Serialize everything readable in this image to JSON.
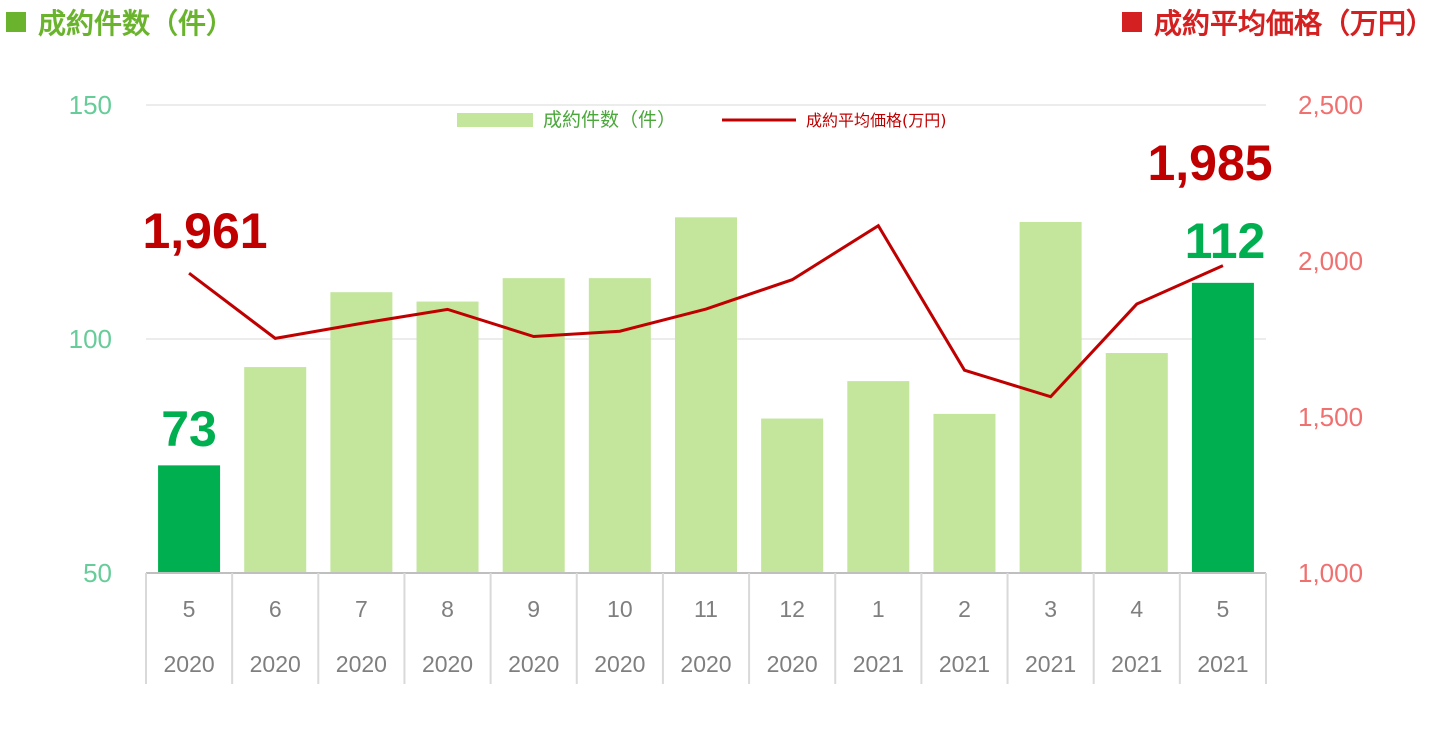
{
  "header": {
    "left_label": "成約件数（件）",
    "right_label": "成約平均価格（万円）",
    "left_color": "#6ab42d",
    "right_color": "#d42020"
  },
  "chart_data": {
    "type": "bar",
    "categories": [
      {
        "month": "5",
        "year": "2020"
      },
      {
        "month": "6",
        "year": "2020"
      },
      {
        "month": "7",
        "year": "2020"
      },
      {
        "month": "8",
        "year": "2020"
      },
      {
        "month": "9",
        "year": "2020"
      },
      {
        "month": "10",
        "year": "2020"
      },
      {
        "month": "11",
        "year": "2020"
      },
      {
        "month": "12",
        "year": "2020"
      },
      {
        "month": "1",
        "year": "2021"
      },
      {
        "month": "2",
        "year": "2021"
      },
      {
        "month": "3",
        "year": "2021"
      },
      {
        "month": "4",
        "year": "2021"
      },
      {
        "month": "5",
        "year": "2021"
      }
    ],
    "series": [
      {
        "name": "成約件数（件）",
        "type": "bar",
        "axis": "left",
        "values": [
          73,
          94,
          110,
          108,
          113,
          113,
          126,
          83,
          91,
          84,
          125,
          97,
          112
        ],
        "color": "#c3e59c",
        "highlight_color": "#00b050",
        "highlight_indices": [
          0,
          12
        ]
      },
      {
        "name": "成約平均価格(万円)",
        "type": "line",
        "axis": "right",
        "values": [
          1961,
          1752,
          1800,
          1845,
          1758,
          1775,
          1846,
          1940,
          2113,
          1650,
          1565,
          1862,
          1985
        ],
        "color": "#c00000"
      }
    ],
    "y_left": {
      "ylim": [
        50,
        150
      ],
      "ticks": [
        "50",
        "100",
        "150"
      ],
      "color": "#66cc99"
    },
    "y_right": {
      "ylim": [
        1000,
        2500
      ],
      "ticks": [
        "1,000",
        "1,500",
        "2,000",
        "2,500"
      ],
      "color": "#f07070"
    },
    "annotations": [
      {
        "text": "1,961",
        "color": "#c00000"
      },
      {
        "text": "1,985",
        "color": "#c00000"
      },
      {
        "text": "73",
        "color": "#00b050"
      },
      {
        "text": "112",
        "color": "#00b050"
      }
    ],
    "grid": "horizontal",
    "legend_position": "top-center"
  }
}
